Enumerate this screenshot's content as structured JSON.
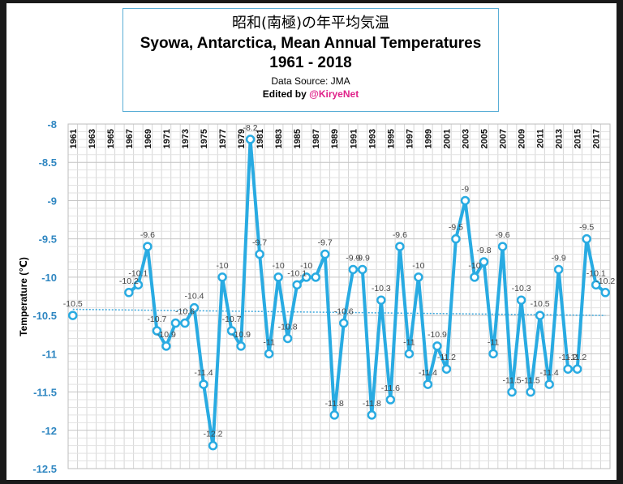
{
  "chart_data": {
    "type": "line",
    "title_ja": "昭和(南極)の年平均気温",
    "title": "Syowa, Antarctica, Mean Annual Temperatures",
    "subtitle": "1961 - 2018",
    "source": "Data Source: JMA",
    "edited_prefix": "Edited by ",
    "edited_handle": "@KiryeNet",
    "xlabel": "",
    "ylabel": "Temperature (℃)",
    "ylim": [
      -12.5,
      -8
    ],
    "yticks": [
      -8,
      -8.5,
      -9,
      -9.5,
      -10,
      -10.5,
      -11,
      -11.5,
      -12,
      -12.5
    ],
    "xlim": [
      1961,
      2018
    ],
    "xtick_labels": [
      "1961",
      "1963",
      "1965",
      "1967",
      "1969",
      "1971",
      "1973",
      "1975",
      "1977",
      "1979",
      "1981",
      "1983",
      "1985",
      "1987",
      "1989",
      "1991",
      "1993",
      "1995",
      "1997",
      "1999",
      "2001",
      "2003",
      "2005",
      "2007",
      "2009",
      "2011",
      "2013",
      "2015",
      "2017"
    ],
    "grid": true,
    "series": [
      {
        "values": [
          {
            "x": 1961,
            "y": -10.5
          },
          {
            "x": 1967,
            "y": -10.2
          },
          {
            "x": 1968,
            "y": -10.1
          },
          {
            "x": 1969,
            "y": -9.6
          },
          {
            "x": 1970,
            "y": -10.7
          },
          {
            "x": 1971,
            "y": -10.9
          },
          {
            "x": 1972,
            "y": -10.6
          },
          {
            "x": 1973,
            "y": -10.6
          },
          {
            "x": 1974,
            "y": -10.4
          },
          {
            "x": 1975,
            "y": -11.4
          },
          {
            "x": 1976,
            "y": -12.2
          },
          {
            "x": 1977,
            "y": -10
          },
          {
            "x": 1978,
            "y": -10.7
          },
          {
            "x": 1979,
            "y": -10.9
          },
          {
            "x": 1980,
            "y": -8.2
          },
          {
            "x": 1981,
            "y": -9.7
          },
          {
            "x": 1982,
            "y": -11
          },
          {
            "x": 1983,
            "y": -10
          },
          {
            "x": 1984,
            "y": -10.8
          },
          {
            "x": 1985,
            "y": -10.1
          },
          {
            "x": 1986,
            "y": -10
          },
          {
            "x": 1987,
            "y": -10
          },
          {
            "x": 1988,
            "y": -9.7
          },
          {
            "x": 1989,
            "y": -11.8
          },
          {
            "x": 1990,
            "y": -10.6
          },
          {
            "x": 1991,
            "y": -9.9
          },
          {
            "x": 1992,
            "y": -9.9
          },
          {
            "x": 1993,
            "y": -11.8
          },
          {
            "x": 1994,
            "y": -10.3
          },
          {
            "x": 1995,
            "y": -11.6
          },
          {
            "x": 1996,
            "y": -9.6
          },
          {
            "x": 1997,
            "y": -11
          },
          {
            "x": 1998,
            "y": -10
          },
          {
            "x": 1999,
            "y": -11.4
          },
          {
            "x": 2000,
            "y": -10.9
          },
          {
            "x": 2001,
            "y": -11.2
          },
          {
            "x": 2002,
            "y": -9.5
          },
          {
            "x": 2003,
            "y": -9
          },
          {
            "x": 2004,
            "y": -10
          },
          {
            "x": 2005,
            "y": -9.8
          },
          {
            "x": 2006,
            "y": -11
          },
          {
            "x": 2007,
            "y": -9.6
          },
          {
            "x": 2008,
            "y": -11.5
          },
          {
            "x": 2009,
            "y": -10.3
          },
          {
            "x": 2010,
            "y": -11.5
          },
          {
            "x": 2011,
            "y": -10.5
          },
          {
            "x": 2012,
            "y": -11.4
          },
          {
            "x": 2013,
            "y": -9.9
          },
          {
            "x": 2014,
            "y": -11.2
          },
          {
            "x": 2015,
            "y": -11.2
          },
          {
            "x": 2016,
            "y": -9.5
          },
          {
            "x": 2017,
            "y": -10.1
          },
          {
            "x": 2018,
            "y": -10.2
          }
        ],
        "labels": [
          {
            "x": 1961,
            "text": "-10.5"
          },
          {
            "x": 1967,
            "text": "-10.2"
          },
          {
            "x": 1968,
            "text": "-10.1"
          },
          {
            "x": 1969,
            "text": "-9.6"
          },
          {
            "x": 1970,
            "text": "-10.7"
          },
          {
            "x": 1971,
            "text": "-10.9"
          },
          {
            "x": 1973,
            "text": "-10.6"
          },
          {
            "x": 1974,
            "text": "-10.4"
          },
          {
            "x": 1975,
            "text": "-11.4"
          },
          {
            "x": 1976,
            "text": "-12.2"
          },
          {
            "x": 1977,
            "text": "-10"
          },
          {
            "x": 1978,
            "text": "-10.7"
          },
          {
            "x": 1979,
            "text": "-10.9"
          },
          {
            "x": 1980,
            "text": "-8.2"
          },
          {
            "x": 1981,
            "text": "-9.7"
          },
          {
            "x": 1982,
            "text": "-11"
          },
          {
            "x": 1983,
            "text": "-10"
          },
          {
            "x": 1984,
            "text": "-10.8"
          },
          {
            "x": 1985,
            "text": "-10.1"
          },
          {
            "x": 1986,
            "text": "-10"
          },
          {
            "x": 1988,
            "text": "-9.7"
          },
          {
            "x": 1989,
            "text": "-11.8"
          },
          {
            "x": 1990,
            "text": "-10.6"
          },
          {
            "x": 1991,
            "text": "-9.9"
          },
          {
            "x": 1992,
            "text": "-9.9"
          },
          {
            "x": 1993,
            "text": "-11.8"
          },
          {
            "x": 1994,
            "text": "-10.3"
          },
          {
            "x": 1995,
            "text": "-11.6"
          },
          {
            "x": 1996,
            "text": "-9.6"
          },
          {
            "x": 1997,
            "text": "-11"
          },
          {
            "x": 1998,
            "text": "-10"
          },
          {
            "x": 1999,
            "text": "-11.4"
          },
          {
            "x": 2000,
            "text": "-10.9"
          },
          {
            "x": 2001,
            "text": "-11.2"
          },
          {
            "x": 2002,
            "text": "-9.5"
          },
          {
            "x": 2003,
            "text": "-9"
          },
          {
            "x": 2004,
            "text": "-10"
          },
          {
            "x": 2005,
            "text": "-9.8"
          },
          {
            "x": 2006,
            "text": "-11"
          },
          {
            "x": 2007,
            "text": "-9.6"
          },
          {
            "x": 2008,
            "text": "-11.5"
          },
          {
            "x": 2009,
            "text": "-10.3"
          },
          {
            "x": 2010,
            "text": "-11.5"
          },
          {
            "x": 2011,
            "text": "-10.5"
          },
          {
            "x": 2012,
            "text": "-11.4"
          },
          {
            "x": 2013,
            "text": "-9.9"
          },
          {
            "x": 2014,
            "text": "-11.2"
          },
          {
            "x": 2015,
            "text": "-11.2"
          },
          {
            "x": 2016,
            "text": "-9.5"
          },
          {
            "x": 2017,
            "text": "-10.1"
          },
          {
            "x": 2018,
            "text": "-10.2"
          }
        ]
      }
    ],
    "trendline": {
      "style": "dotted",
      "y_start": -10.42,
      "y_end": -10.5
    },
    "colors": {
      "line": "#29abe2",
      "axis_text": "#2e86c1",
      "trend": "#3ba7dc",
      "grid": "#d6d6d6",
      "title_border": "#5aaed6",
      "handle": "#e0218a"
    }
  }
}
